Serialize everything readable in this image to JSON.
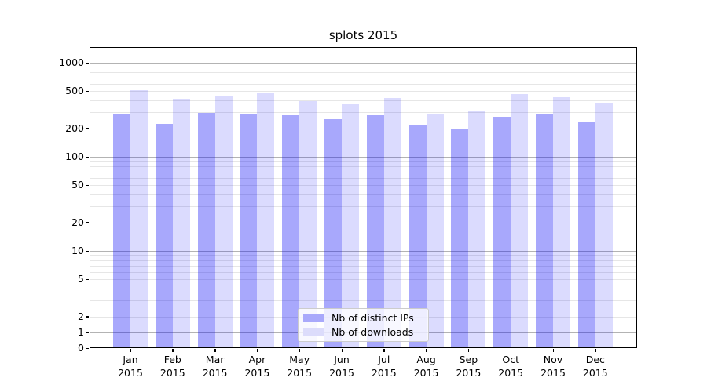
{
  "chart_data": {
    "type": "bar",
    "title": "splots 2015",
    "categories": [
      "Jan",
      "Feb",
      "Mar",
      "Apr",
      "May",
      "Jun",
      "Jul",
      "Aug",
      "Sep",
      "Oct",
      "Nov",
      "Dec"
    ],
    "year_label": "2015",
    "series": [
      {
        "name": "Nb of distinct IPs",
        "color": "#a9a9fb",
        "fill_rgba": "rgba(0,0,245,0.34)",
        "values": [
          280,
          225,
          292,
          281,
          276,
          249,
          276,
          216,
          196,
          266,
          288,
          236
        ]
      },
      {
        "name": "Nb of downloads",
        "color": "#dcdcfb",
        "fill_rgba": "rgba(0,0,245,0.14)",
        "values": [
          510,
          415,
          450,
          478,
          389,
          362,
          419,
          283,
          305,
          462,
          434,
          370
        ]
      }
    ],
    "yscale": "symlog",
    "y_ticks": [
      "0",
      "1",
      "2",
      "5",
      "10",
      "20",
      "50",
      "100",
      "200",
      "500",
      "1000"
    ],
    "ylim": [
      0,
      1470
    ],
    "grid": "both",
    "legend_position": "lower center"
  },
  "colors": {
    "grid_major": "#b3b3b3",
    "grid_minor": "#e6e6e6",
    "spine": "#000000",
    "legend_border": "#cccccc",
    "background": "#ffffff"
  }
}
